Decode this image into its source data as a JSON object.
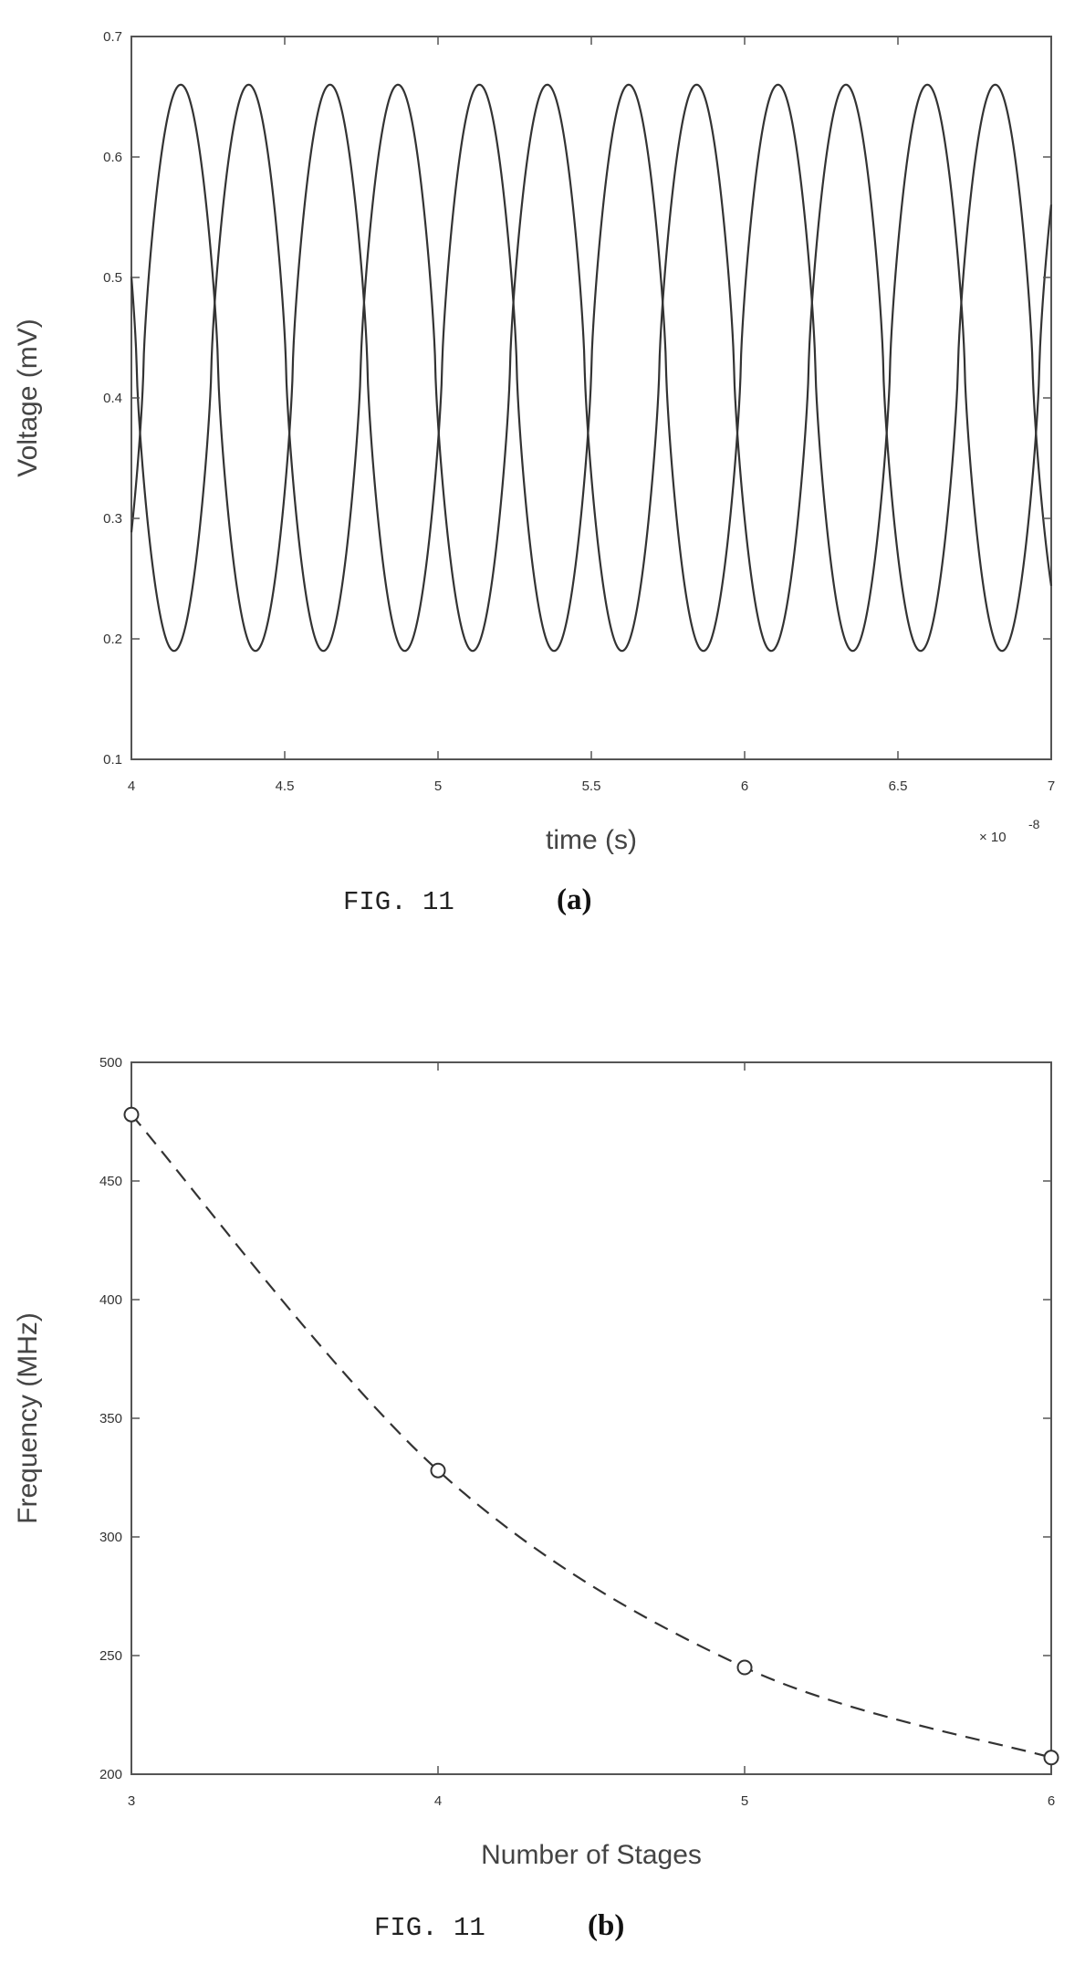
{
  "chart_data": [
    {
      "type": "line",
      "xlabel": "time (s)",
      "ylabel": "Voltage (mV)",
      "x_multiplier": "× 10",
      "x_multiplier_exp": "-8",
      "xlim": [
        4,
        7
      ],
      "ylim": [
        0.1,
        0.7
      ],
      "xticks": [
        "4",
        "4.5",
        "5",
        "5.5",
        "6",
        "6.5",
        "7"
      ],
      "yticks": [
        "0.1",
        "0.2",
        "0.3",
        "0.4",
        "0.5",
        "0.6",
        "0.7"
      ],
      "grid": false,
      "series": [
        {
          "period": 0.487,
          "phase": 4.161,
          "vmin": 0.19,
          "vmax": 0.66
        },
        {
          "period": 0.487,
          "phase": 4.3825,
          "vmin": 0.19,
          "vmax": 0.66
        }
      ],
      "caption": "FIG. 11",
      "caption_sub": "(a)"
    },
    {
      "type": "line",
      "xlabel": "Number of Stages",
      "ylabel": "Frequency (MHz)",
      "xlim": [
        3,
        6
      ],
      "ylim": [
        200,
        500
      ],
      "xticks": [
        "3",
        "4",
        "5",
        "6"
      ],
      "yticks": [
        "200",
        "250",
        "300",
        "350",
        "400",
        "450",
        "500"
      ],
      "grid": false,
      "x": [
        3,
        4,
        5,
        6
      ],
      "y": [
        478,
        328,
        245,
        207
      ],
      "line_style": "dashed",
      "marker": "circle",
      "caption": "FIG. 11",
      "caption_sub": "(b)"
    }
  ]
}
